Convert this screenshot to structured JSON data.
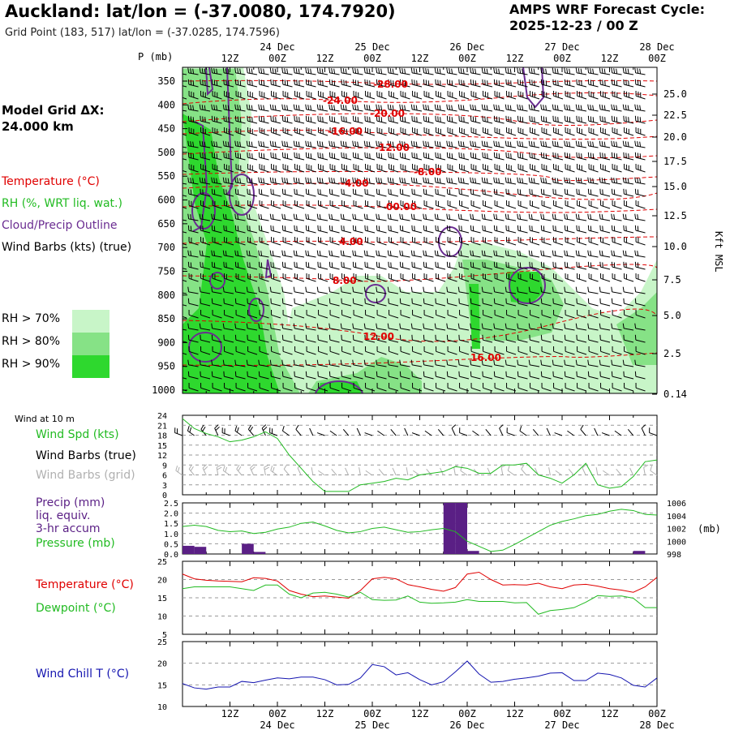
{
  "header": {
    "title": "Auckland:  lat/lon = (-37.0080, 174.7920)",
    "subtitle": "Grid Point (183, 517) lat/lon = (-37.0285, 174.7596)",
    "cycle_line1": "AMPS WRF Forecast Cycle:",
    "cycle_line2": "2025-12-23 / 00  Z",
    "grid_label": "Model Grid ΔX:",
    "grid_value": " 24.000 km"
  },
  "colors": {
    "temperature": "#e00000",
    "rh": "#22bb22",
    "cloud": "#6a2c91",
    "wind": "#000000",
    "wind_grid": "#b0b0b0",
    "precip": "#5a1f85",
    "pressure": "#22bb22",
    "dewpoint": "#22bb22",
    "windchill": "#1515b0",
    "rh70": "#c8f5c8",
    "rh80": "#86e286",
    "rh90": "#2ed82e"
  },
  "time_axis": {
    "labels": [
      "12Z",
      "00Z",
      "12Z",
      "00Z",
      "12Z",
      "00Z",
      "12Z",
      "00Z",
      "12Z",
      "00Z"
    ],
    "dates": [
      "24 Dec",
      "25 Dec",
      "26 Dec",
      "27 Dec",
      "28 Dec"
    ]
  },
  "legend": {
    "temperature": "Temperature (°C)",
    "rh": "RH (%, WRT liq. wat.)",
    "cloud": "Cloud/Precip Outline",
    "wind": "Wind Barbs (kts) (true)",
    "rh70": "RH > 70%",
    "rh80": "RH > 80%",
    "rh90": "RH > 90%",
    "wind10m": "Wind at 10 m",
    "wind_spd": "Wind Spd (kts)",
    "wind_barbs_true": "Wind Barbs (true)",
    "wind_barbs_grid": "Wind Barbs (grid)",
    "precip1": "Precip (mm)",
    "precip2": "liq. equiv.",
    "precip3": "3-hr accum",
    "pressure": "Pressure (mb)",
    "temp2": "Temperature (°C)",
    "dewpoint": "Dewpoint (°C)",
    "windchill": "Wind Chill T (°C)"
  },
  "chart_data": [
    {
      "type": "heatmap",
      "title": "",
      "ylabel": "P (mb)",
      "y2label": "Kft MSL",
      "y_ticks": [
        350,
        400,
        450,
        500,
        550,
        600,
        650,
        700,
        750,
        800,
        850,
        900,
        950,
        1000
      ],
      "y2_ticks": [
        "25.0",
        "22.5",
        "20.0",
        "17.5",
        "15.0",
        "12.5",
        "10.0",
        "7.5",
        "5.0",
        "2.5",
        "0.14"
      ],
      "temperature_contour_labels": [
        "-28.00",
        "-24.00",
        "-20.00",
        "-16.00",
        "-12.00",
        "-8.00",
        "-4.00",
        "00.00",
        "4.00",
        "8.00",
        "12.00",
        "16.00"
      ]
    },
    {
      "type": "line",
      "title": "Wind at 10 m",
      "ylabel": "Wind Spd (kts)",
      "ylim": [
        0,
        24
      ],
      "y_ticks": [
        0,
        3,
        6,
        9,
        12,
        15,
        18,
        21,
        24
      ],
      "x_hours": [
        0,
        3,
        6,
        9,
        12,
        15,
        18,
        21,
        24,
        27,
        30,
        33,
        36,
        39,
        42,
        45,
        48,
        51,
        54,
        57,
        60,
        63,
        66,
        69,
        72,
        75,
        78,
        81,
        84,
        87,
        90,
        93,
        96,
        99,
        102,
        105,
        108,
        111,
        114,
        117,
        120
      ],
      "values": [
        23,
        20,
        18.5,
        17.5,
        16,
        16.5,
        17.5,
        19,
        17,
        12,
        8,
        4,
        1,
        1,
        1,
        3,
        3.5,
        4,
        5,
        4.5,
        6,
        6.5,
        7,
        8.5,
        8,
        6.5,
        6.5,
        9,
        9,
        9.5,
        6,
        5,
        3.5,
        6,
        9.5,
        3,
        2,
        2.5,
        5.5,
        10,
        10.5
      ]
    },
    {
      "type": "bar",
      "title": "",
      "ylabel": "Precip (mm) liq. equiv. 3-hr accum",
      "ylim": [
        0,
        2.5
      ],
      "y_ticks": [
        "0.0",
        "0.5",
        "1.0",
        "1.5",
        "2.0",
        "2.5"
      ],
      "x_hours": [
        3,
        6,
        18,
        21,
        69,
        72,
        75,
        117
      ],
      "values": [
        0.4,
        0.35,
        0.5,
        0.1,
        2.5,
        2.5,
        0.15,
        0.15
      ],
      "series2": {
        "name": "Pressure (mb)",
        "ylim": [
          998,
          1006
        ],
        "y_ticks": [
          998,
          1000,
          1002,
          1004,
          1006
        ],
        "unit": "(mb)",
        "x_hours": [
          0,
          3,
          6,
          9,
          12,
          15,
          18,
          21,
          24,
          27,
          30,
          33,
          36,
          39,
          42,
          45,
          48,
          51,
          54,
          57,
          60,
          63,
          66,
          69,
          72,
          75,
          78,
          81,
          84,
          87,
          90,
          93,
          96,
          99,
          102,
          105,
          108,
          111,
          114,
          117,
          120
        ],
        "values": [
          1002.3,
          1002.5,
          1002.3,
          1001.7,
          1001.5,
          1001.6,
          1001.2,
          1001.4,
          1001.9,
          1002.2,
          1002.8,
          1003,
          1002.4,
          1001.7,
          1001.3,
          1001.5,
          1002,
          1002.2,
          1001.8,
          1001.4,
          1001.5,
          1001.8,
          1002,
          1001.5,
          1000,
          999.2,
          998.4,
          998.6,
          999.5,
          1000.5,
          1001.5,
          1002.5,
          1003.1,
          1003.5,
          1004,
          1004.2,
          1004.7,
          1005,
          1004.8,
          1004.2,
          1004.1
        ]
      }
    },
    {
      "type": "line",
      "title": "",
      "ylabel": "Temperature / Dewpoint (°C)",
      "ylim": [
        5,
        25
      ],
      "y_ticks": [
        5,
        10,
        15,
        20,
        25
      ],
      "x_hours": [
        0,
        3,
        6,
        9,
        12,
        15,
        18,
        21,
        24,
        27,
        30,
        33,
        36,
        39,
        42,
        45,
        48,
        51,
        54,
        57,
        60,
        63,
        66,
        69,
        72,
        75,
        78,
        81,
        84,
        87,
        90,
        93,
        96,
        99,
        102,
        105,
        108,
        111,
        114,
        117,
        120
      ],
      "series": [
        {
          "name": "Temperature (°C)",
          "values": [
            21.5,
            20.2,
            19.8,
            19.6,
            19.5,
            19.4,
            20.5,
            20.3,
            19.6,
            17,
            16,
            15.3,
            15.5,
            15.2,
            14.9,
            17,
            20.2,
            20.6,
            20.2,
            18.6,
            18,
            17.3,
            16.8,
            17.8,
            21.5,
            22,
            20,
            18.5,
            18.6,
            18.5,
            19,
            18,
            17.5,
            18.5,
            18.7,
            18.2,
            17.5,
            17.1,
            16.5,
            18,
            20.6
          ]
        },
        {
          "name": "Dewpoint (°C)",
          "values": [
            17.5,
            18,
            18,
            18,
            18,
            17.5,
            17,
            18.5,
            18.5,
            16,
            15,
            16.3,
            16.5,
            16,
            15.2,
            16.5,
            14.5,
            14.3,
            14.4,
            15.5,
            13.8,
            13.5,
            13.6,
            13.8,
            14.5,
            14,
            14,
            14,
            13.6,
            13.7,
            10.5,
            11.5,
            11.8,
            12.3,
            13.8,
            15.6,
            15.4,
            15.5,
            14.9,
            12.3,
            12.3
          ]
        }
      ]
    },
    {
      "type": "line",
      "title": "",
      "ylabel": "Wind Chill T (°C)",
      "ylim": [
        10,
        25
      ],
      "y_ticks": [
        10,
        15,
        20,
        25
      ],
      "x_hours": [
        0,
        3,
        6,
        9,
        12,
        15,
        18,
        21,
        24,
        27,
        30,
        33,
        36,
        39,
        42,
        45,
        48,
        51,
        54,
        57,
        60,
        63,
        66,
        69,
        72,
        75,
        78,
        81,
        84,
        87,
        90,
        93,
        96,
        99,
        102,
        105,
        108,
        111,
        114,
        117,
        120
      ],
      "series": [
        {
          "name": "Wind Chill T (°C)",
          "values": [
            15.3,
            14.3,
            14,
            14.5,
            14.5,
            15.8,
            15.5,
            16.1,
            16.6,
            16.4,
            16.8,
            16.8,
            16.2,
            15,
            15.1,
            16.6,
            19.7,
            19.2,
            17.3,
            17.8,
            16.2,
            15,
            15.7,
            18,
            20.5,
            17.5,
            15.6,
            15.8,
            16.3,
            16.6,
            17,
            17.7,
            17.8,
            16,
            16,
            17.7,
            17.4,
            16.6,
            14.9,
            14.5,
            16.6
          ]
        }
      ]
    }
  ]
}
